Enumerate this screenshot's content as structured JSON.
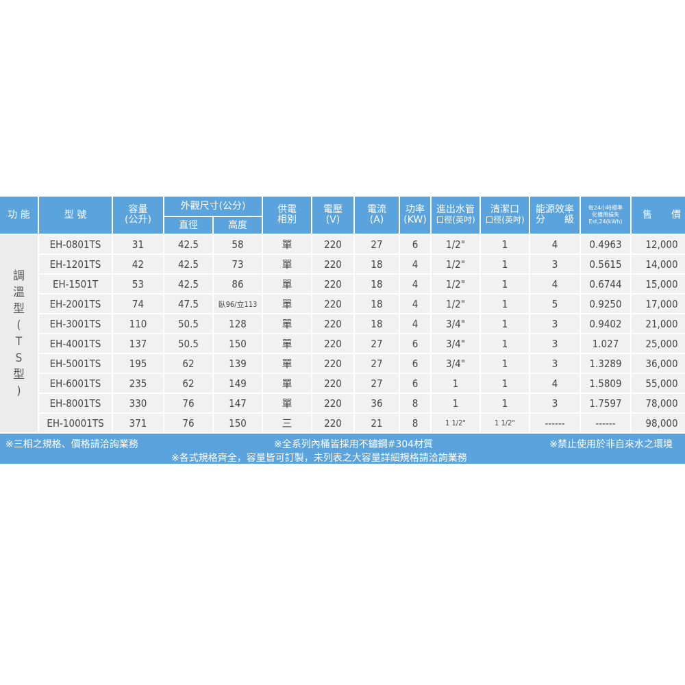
{
  "colors": {
    "header": "#5aa3dc",
    "cell": "#f1f1f1"
  },
  "headers": {
    "function": "功 能",
    "model": "型 號",
    "capacity": "容量",
    "capacity_unit": "(公升)",
    "dimensions": "外觀尺寸(公分)",
    "diameter": "直徑",
    "height": "高度",
    "phase": "供電",
    "phase2": "相別",
    "voltage": "電壓",
    "voltage_unit": "(V)",
    "current": "電流",
    "current_unit": "(A)",
    "power": "功率",
    "power_unit": "(KW)",
    "pipe": "進出水管",
    "pipe2": "口徑(英吋)",
    "clean": "清潔口",
    "clean2": "口徑(英吋)",
    "energy": "能源效率",
    "energy2": "分　　級",
    "loss": "每24小時標準",
    "loss2": "化備用損失",
    "loss3": "Est,24(kWh)",
    "price": "售　　價"
  },
  "side_label": "調溫型(TS型)",
  "rows": [
    [
      "EH-0801TS",
      "31",
      "42.5",
      "58",
      "單",
      "220",
      "27",
      "6",
      "1/2\"",
      "1",
      "4",
      "0.4963",
      "12,000"
    ],
    [
      "EH-1201TS",
      "42",
      "42.5",
      "73",
      "單",
      "220",
      "18",
      "4",
      "1/2\"",
      "1",
      "3",
      "0.5615",
      "14,000"
    ],
    [
      "EH-1501T",
      "53",
      "42.5",
      "86",
      "單",
      "220",
      "18",
      "4",
      "1/2\"",
      "1",
      "4",
      "0.6744",
      "15,000"
    ],
    [
      "EH-2001TS",
      "74",
      "47.5",
      "臥96/立113",
      "單",
      "220",
      "18",
      "4",
      "1/2\"",
      "1",
      "5",
      "0.9250",
      "17,000"
    ],
    [
      "EH-3001TS",
      "110",
      "50.5",
      "128",
      "單",
      "220",
      "18",
      "4",
      "3/4\"",
      "1",
      "3",
      "0.9402",
      "21,000"
    ],
    [
      "EH-4001TS",
      "137",
      "50.5",
      "150",
      "單",
      "220",
      "27",
      "6",
      "3/4\"",
      "1",
      "3",
      "1.027",
      "25,000"
    ],
    [
      "EH-5001TS",
      "195",
      "62",
      "139",
      "單",
      "220",
      "27",
      "6",
      "3/4\"",
      "1",
      "3",
      "1.3289",
      "36,000"
    ],
    [
      "EH-6001TS",
      "235",
      "62",
      "149",
      "單",
      "220",
      "27",
      "6",
      "1",
      "1",
      "4",
      "1.5809",
      "55,000"
    ],
    [
      "EH-8001TS",
      "330",
      "76",
      "147",
      "單",
      "220",
      "36",
      "8",
      "1",
      "1",
      "3",
      "1.7597",
      "78,000"
    ],
    [
      "EH-10001TS",
      "371",
      "76",
      "150",
      "三",
      "220",
      "21",
      "8",
      "1 1/2\"",
      "1 1/2\"",
      "------",
      "------",
      "98,000"
    ]
  ],
  "footer": {
    "note1": "※三相之規格、價格請洽詢業務",
    "note2": "※全系列內桶皆採用不鏽鋼#304材質",
    "note3": "※禁止使用於非自來水之環境",
    "note4": "※各式規格齊全，容量皆可訂製，未列表之大容量詳細規格請洽詢業務"
  }
}
